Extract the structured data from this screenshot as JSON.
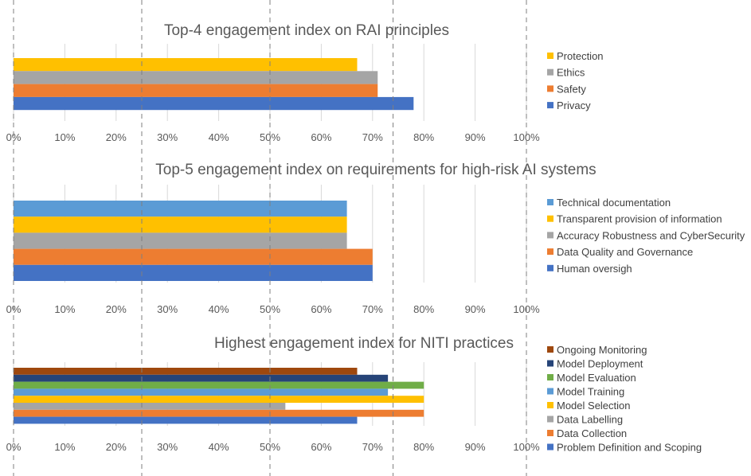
{
  "chart_data": [
    {
      "type": "bar",
      "orientation": "horizontal",
      "title": "Top-4 engagement index on RAI principles",
      "xlim": [
        0,
        1
      ],
      "x_ticks": [
        "0%",
        "10%",
        "20%",
        "30%",
        "40%",
        "50%",
        "60%",
        "70%",
        "80%",
        "90%",
        "100%"
      ],
      "grid": true,
      "legend_position": "right",
      "series": [
        {
          "name": "Protection",
          "value": 0.67,
          "color": "#FFC000"
        },
        {
          "name": "Ethics",
          "value": 0.71,
          "color": "#A5A5A5"
        },
        {
          "name": "Safety",
          "value": 0.71,
          "color": "#ED7D31"
        },
        {
          "name": "Privacy",
          "value": 0.78,
          "color": "#4472C4"
        }
      ]
    },
    {
      "type": "bar",
      "orientation": "horizontal",
      "title": "Top-5 engagement index on requirements for high-risk AI systems",
      "xlim": [
        0,
        1
      ],
      "x_ticks": [
        "0%",
        "10%",
        "20%",
        "30%",
        "40%",
        "50%",
        "60%",
        "70%",
        "80%",
        "90%",
        "100%"
      ],
      "grid": true,
      "legend_position": "right",
      "series": [
        {
          "name": "Technical documentation",
          "value": 0.65,
          "color": "#5B9BD5"
        },
        {
          "name": "Transparent provision of information",
          "value": 0.65,
          "color": "#FFC000"
        },
        {
          "name": "Accuracy Robustness and CyberSecurity",
          "value": 0.65,
          "color": "#A5A5A5"
        },
        {
          "name": "Data Quality and Governance",
          "value": 0.7,
          "color": "#ED7D31"
        },
        {
          "name": "Human oversigh",
          "value": 0.7,
          "color": "#4472C4"
        }
      ]
    },
    {
      "type": "bar",
      "orientation": "horizontal",
      "title": "Highest engagement index for NITI practices",
      "xlim": [
        0,
        1
      ],
      "x_ticks": [
        "0%",
        "10%",
        "20%",
        "30%",
        "40%",
        "50%",
        "60%",
        "70%",
        "80%",
        "90%",
        "100%"
      ],
      "grid": true,
      "legend_position": "right",
      "series": [
        {
          "name": "Ongoing Monitoring",
          "value": 0.67,
          "color": "#9E480E"
        },
        {
          "name": "Model Deployment",
          "value": 0.73,
          "color": "#264478"
        },
        {
          "name": "Model Evaluation",
          "value": 0.8,
          "color": "#70AD47"
        },
        {
          "name": "Model Training",
          "value": 0.73,
          "color": "#5B9BD5"
        },
        {
          "name": "Model Selection",
          "value": 0.8,
          "color": "#FFC000"
        },
        {
          "name": "Data Labelling",
          "value": 0.53,
          "color": "#A5A5A5"
        },
        {
          "name": "Data Collection",
          "value": 0.8,
          "color": "#ED7D31"
        },
        {
          "name": "Problem Definition and Scoping",
          "value": 0.67,
          "color": "#4472C4"
        }
      ]
    }
  ],
  "overlay": {
    "dashed_reference_lines": [
      0.0,
      0.25,
      0.5,
      0.74,
      1.0
    ]
  }
}
